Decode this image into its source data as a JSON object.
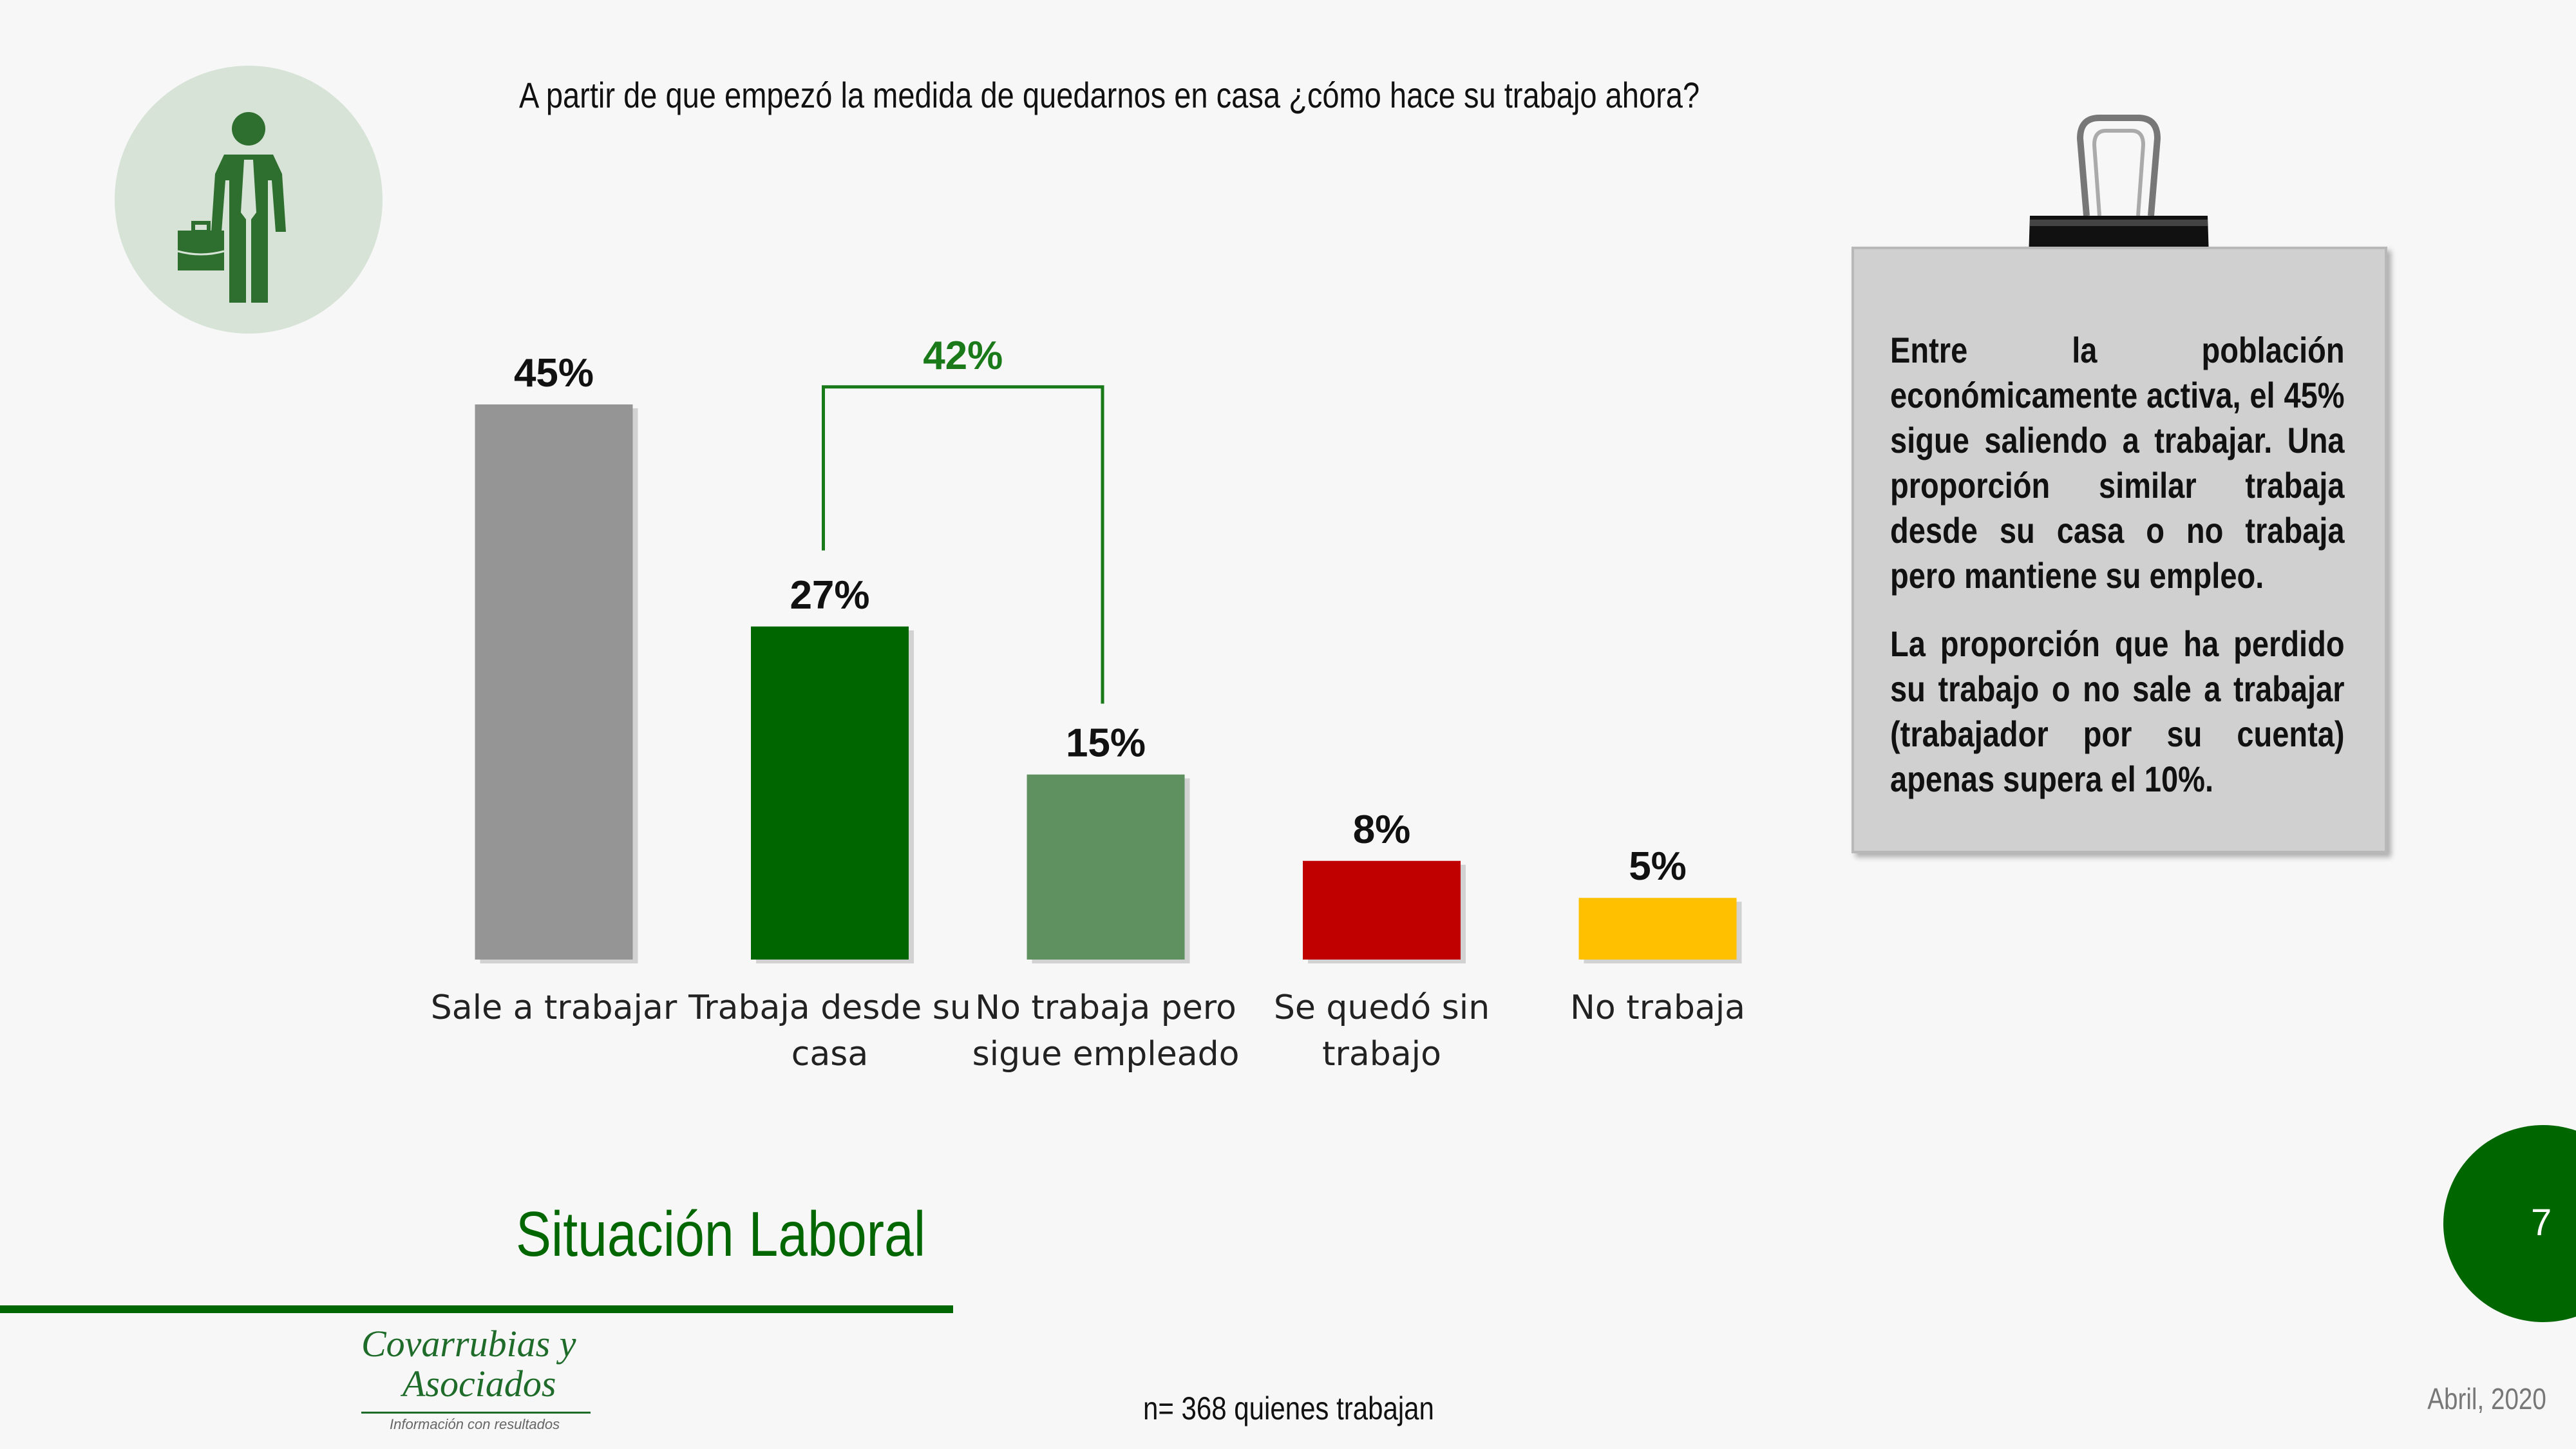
{
  "question": "A partir de que empezó la medida de quedarnos en casa ¿cómo hace su trabajo ahora?",
  "chart_data": {
    "type": "bar",
    "title": "A partir de que empezó la medida de quedarnos en casa ¿cómo hace su trabajo ahora?",
    "categories": [
      "Sale a trabajar",
      "Trabaja desde su casa",
      "No trabaja pero sigue empleado",
      "Se quedó sin trabajo",
      "No trabaja"
    ],
    "category_lines": [
      [
        "Sale a trabajar"
      ],
      [
        "Trabaja desde su",
        "casa"
      ],
      [
        "No trabaja pero",
        "sigue empleado"
      ],
      [
        "Se quedó sin",
        "trabajo"
      ],
      [
        "No trabaja"
      ]
    ],
    "values": [
      45,
      27,
      15,
      8,
      5
    ],
    "value_labels": [
      "45%",
      "27%",
      "15%",
      "8%",
      "5%"
    ],
    "colors": [
      "#959595",
      "#006600",
      "#5f9160",
      "#c00000",
      "#ffc000"
    ],
    "ylim": [
      0,
      45
    ],
    "grid": false,
    "annotation": {
      "label": "42%",
      "spans": [
        1,
        2
      ],
      "color": "#1a7a1a"
    }
  },
  "note": {
    "paragraph1": "Entre la población económicamente activa, el 45% sigue saliendo a trabajar. Una proporción similar trabaja desde su casa o no trabaja pero mantiene su empleo.",
    "paragraph2": "La proporción que ha perdido su trabajo o no sale a trabajar (trabajador por su cuenta) apenas supera el 10%."
  },
  "section_title": "Situación Laboral",
  "logo": {
    "line1": "Covarrubias y",
    "line2": "Asociados",
    "tagline": "Información con resultados"
  },
  "sample": "n= 368 quienes trabajan",
  "page_number": "7",
  "date": "Abril, 2020"
}
